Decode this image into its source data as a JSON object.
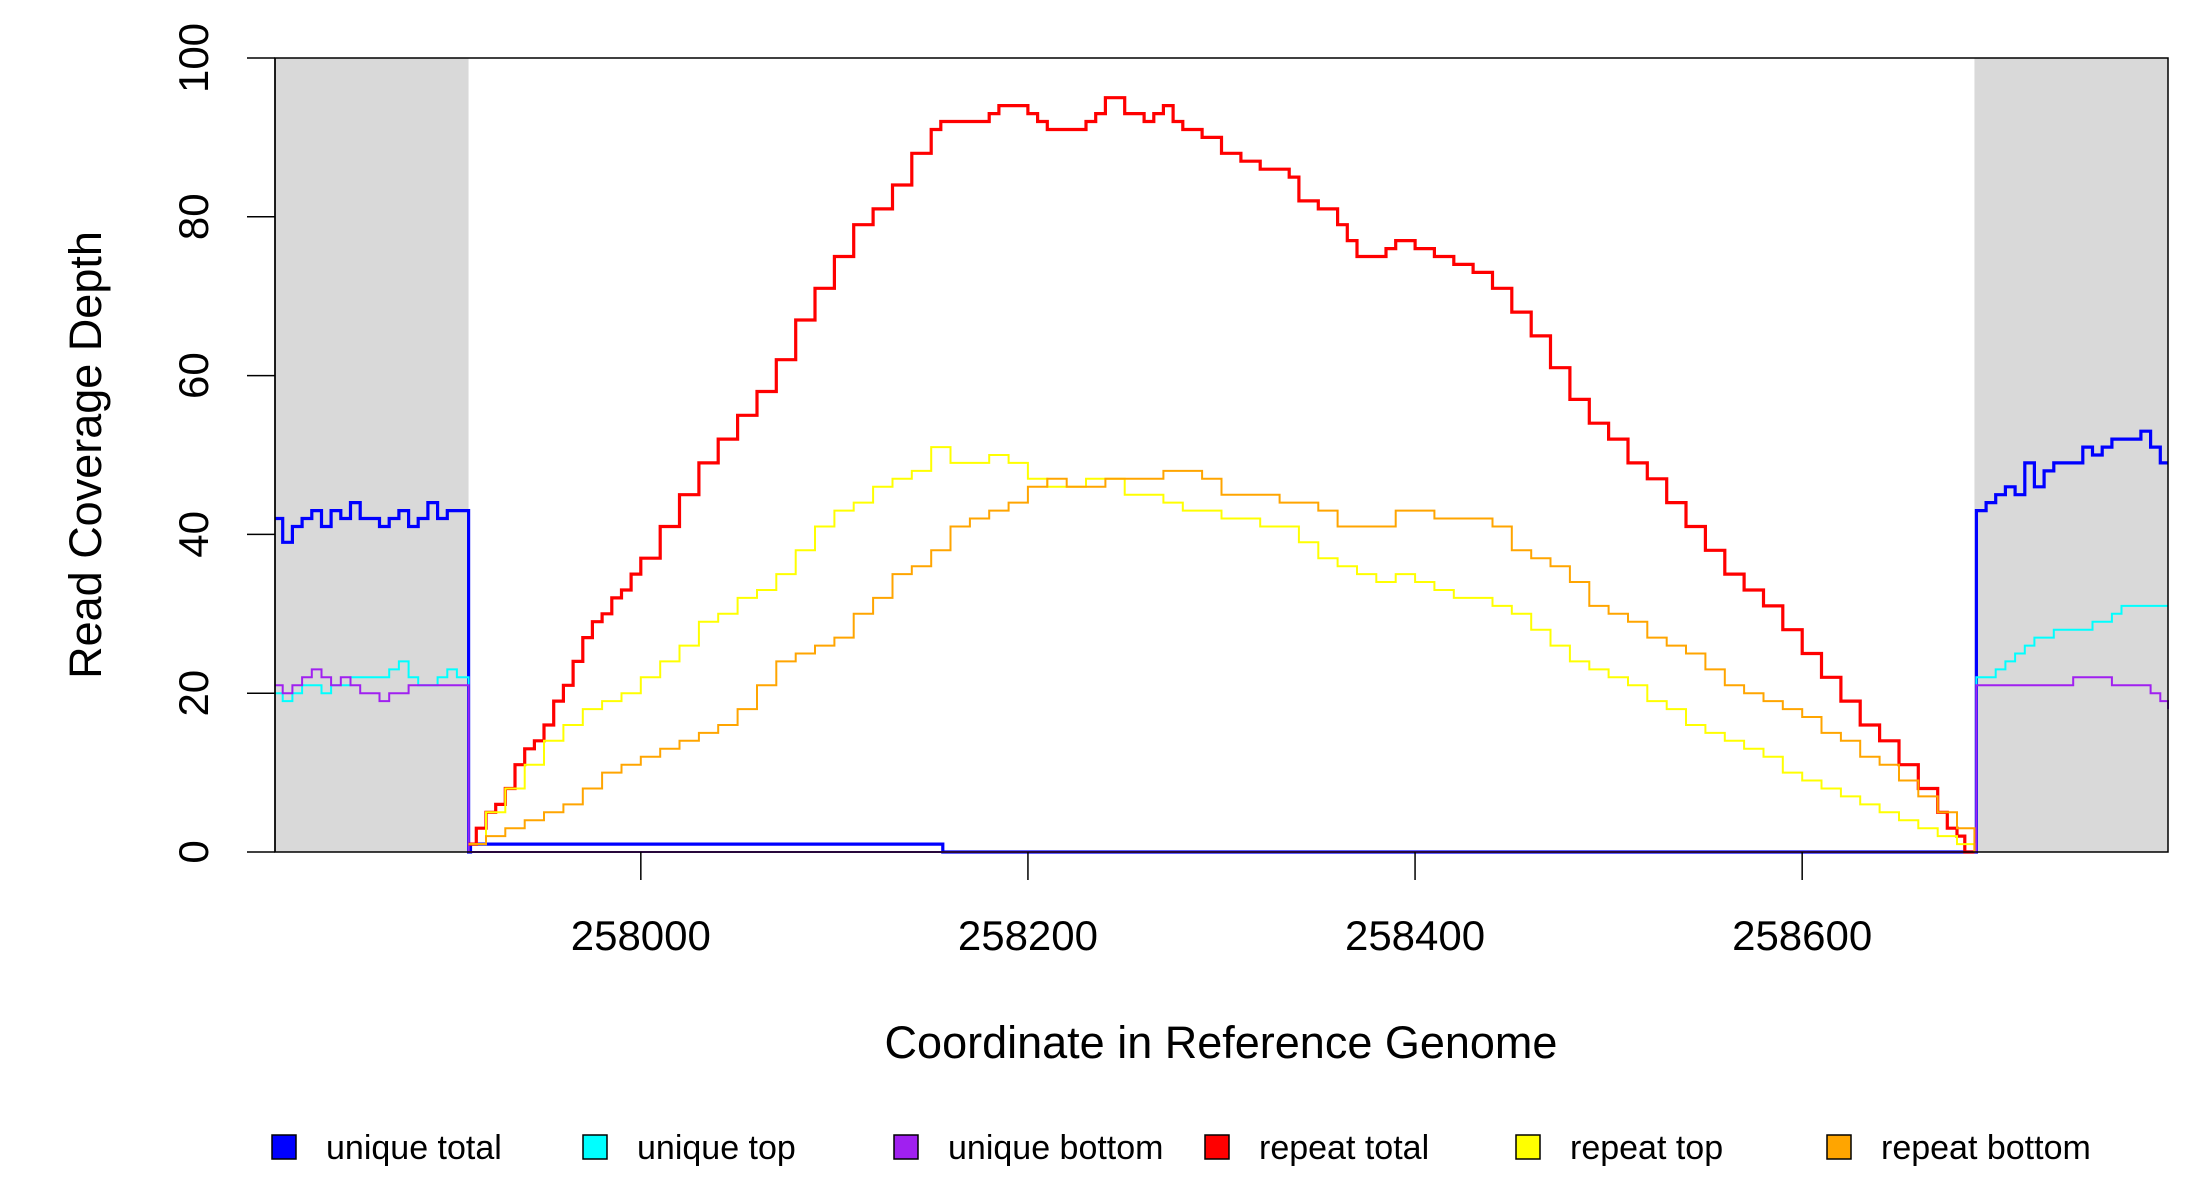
{
  "chart_data": {
    "type": "line",
    "xlabel": "Coordinate in Reference Genome",
    "ylabel": "Read Coverage Depth",
    "xlim": [
      257811,
      258789
    ],
    "ylim": [
      0,
      100
    ],
    "x_ticks": [
      258000,
      258200,
      258400,
      258600
    ],
    "y_ticks": [
      0,
      20,
      40,
      60,
      80,
      100
    ],
    "x_tick_labels": [
      "258000",
      "258200",
      "258400",
      "258600"
    ],
    "y_tick_labels": [
      "0",
      "20",
      "40",
      "60",
      "80",
      "100"
    ],
    "shaded_regions": [
      {
        "from": 257811,
        "to": 257911,
        "color": "#d9d9d9"
      },
      {
        "from": 258689,
        "to": 258789,
        "color": "#d9d9d9"
      }
    ],
    "grid": false,
    "legend_position": "bottom",
    "series": [
      {
        "name": "unique total",
        "color": "#0000ff",
        "x": [
          257811,
          257815,
          257820,
          257825,
          257830,
          257835,
          257840,
          257845,
          257850,
          257855,
          257860,
          257865,
          257870,
          257875,
          257880,
          257885,
          257890,
          257895,
          257900,
          257905,
          257910,
          257911,
          257912,
          258155,
          258156,
          258689,
          258690,
          258695,
          258700,
          258705,
          258710,
          258715,
          258720,
          258725,
          258730,
          258735,
          258740,
          258745,
          258750,
          258755,
          258760,
          258765,
          258770,
          258775,
          258780,
          258785,
          258789
        ],
        "y": [
          42,
          39,
          41,
          42,
          43,
          41,
          43,
          42,
          44,
          42,
          42,
          41,
          42,
          43,
          41,
          42,
          44,
          42,
          43,
          43,
          43,
          0,
          1,
          1,
          0,
          0,
          43,
          44,
          45,
          46,
          45,
          49,
          46,
          48,
          49,
          49,
          49,
          51,
          50,
          51,
          52,
          52,
          52,
          53,
          51,
          49,
          49
        ]
      },
      {
        "name": "unique top",
        "color": "#00ffff",
        "x": [
          257811,
          257815,
          257820,
          257825,
          257830,
          257835,
          257840,
          257845,
          257850,
          257855,
          257860,
          257865,
          257870,
          257875,
          257880,
          257885,
          257890,
          257895,
          257900,
          257905,
          257910,
          257911,
          258689,
          258690,
          258700,
          258705,
          258710,
          258715,
          258720,
          258730,
          258740,
          258750,
          258760,
          258765,
          258770,
          258775,
          258780,
          258785,
          258789
        ],
        "y": [
          20,
          19,
          20,
          21,
          21,
          20,
          21,
          21,
          22,
          22,
          22,
          22,
          23,
          24,
          22,
          21,
          21,
          22,
          23,
          22,
          22,
          0,
          0,
          22,
          23,
          24,
          25,
          26,
          27,
          28,
          28,
          29,
          30,
          31,
          31,
          31,
          31,
          31,
          31
        ]
      },
      {
        "name": "unique bottom",
        "color": "#a020f0",
        "x": [
          257811,
          257815,
          257820,
          257825,
          257830,
          257835,
          257840,
          257845,
          257850,
          257855,
          257860,
          257865,
          257870,
          257875,
          257880,
          257885,
          257890,
          257895,
          257900,
          257905,
          257910,
          257911,
          258689,
          258690,
          258700,
          258710,
          258720,
          258730,
          258740,
          258750,
          258760,
          258765,
          258770,
          258775,
          258780,
          258785,
          258789
        ],
        "y": [
          21,
          20,
          21,
          22,
          23,
          22,
          21,
          22,
          21,
          20,
          20,
          19,
          20,
          20,
          21,
          21,
          21,
          21,
          21,
          21,
          21,
          0,
          0,
          21,
          21,
          21,
          21,
          21,
          22,
          22,
          21,
          21,
          21,
          21,
          20,
          19,
          18
        ]
      },
      {
        "name": "repeat total",
        "color": "#ff0000",
        "x": [
          257911,
          257915,
          257920,
          257925,
          257930,
          257935,
          257940,
          257945,
          257950,
          257955,
          257960,
          257965,
          257970,
          257975,
          257980,
          257985,
          257990,
          257995,
          258000,
          258010,
          258020,
          258030,
          258040,
          258050,
          258060,
          258070,
          258080,
          258090,
          258100,
          258110,
          258120,
          258130,
          258140,
          258150,
          258155,
          258160,
          258170,
          258180,
          258185,
          258190,
          258195,
          258200,
          258205,
          258210,
          258220,
          258230,
          258235,
          258240,
          258250,
          258260,
          258265,
          258270,
          258275,
          258280,
          258290,
          258300,
          258310,
          258320,
          258330,
          258335,
          258340,
          258350,
          258360,
          258365,
          258370,
          258380,
          258385,
          258390,
          258400,
          258410,
          258420,
          258430,
          258440,
          258450,
          258460,
          258470,
          258480,
          258490,
          258500,
          258510,
          258520,
          258530,
          258540,
          258550,
          258560,
          258570,
          258580,
          258590,
          258600,
          258610,
          258620,
          258630,
          258640,
          258650,
          258660,
          258670,
          258675,
          258680,
          258684,
          258689
        ],
        "y": [
          1,
          3,
          5,
          6,
          8,
          11,
          13,
          14,
          16,
          19,
          21,
          24,
          27,
          29,
          30,
          32,
          33,
          35,
          37,
          41,
          45,
          49,
          52,
          55,
          58,
          62,
          67,
          71,
          75,
          79,
          81,
          84,
          88,
          91,
          92,
          92,
          92,
          93,
          94,
          94,
          94,
          93,
          92,
          91,
          91,
          92,
          93,
          95,
          93,
          92,
          93,
          94,
          92,
          91,
          90,
          88,
          87,
          86,
          86,
          85,
          82,
          81,
          79,
          77,
          75,
          75,
          76,
          77,
          76,
          75,
          74,
          73,
          71,
          68,
          65,
          61,
          57,
          54,
          52,
          49,
          47,
          44,
          41,
          38,
          35,
          33,
          31,
          28,
          25,
          22,
          19,
          16,
          14,
          11,
          8,
          5,
          3,
          2,
          0,
          0
        ]
      },
      {
        "name": "repeat top",
        "color": "#ffff00",
        "x": [
          257911,
          257920,
          257930,
          257940,
          257950,
          257960,
          257970,
          257980,
          257990,
          258000,
          258010,
          258020,
          258030,
          258040,
          258050,
          258060,
          258070,
          258080,
          258090,
          258100,
          258110,
          258120,
          258130,
          258140,
          258150,
          258160,
          258170,
          258180,
          258190,
          258200,
          258210,
          258220,
          258230,
          258240,
          258250,
          258260,
          258270,
          258280,
          258290,
          258300,
          258310,
          258320,
          258330,
          258340,
          258350,
          258360,
          258370,
          258380,
          258390,
          258400,
          258410,
          258420,
          258430,
          258440,
          258450,
          258460,
          258470,
          258480,
          258490,
          258500,
          258510,
          258520,
          258530,
          258540,
          258550,
          258560,
          258570,
          258580,
          258590,
          258600,
          258610,
          258620,
          258630,
          258640,
          258650,
          258660,
          258670,
          258680,
          258689
        ],
        "y": [
          1,
          5,
          8,
          11,
          14,
          16,
          18,
          19,
          20,
          22,
          24,
          26,
          29,
          30,
          32,
          33,
          35,
          38,
          41,
          43,
          44,
          46,
          47,
          48,
          51,
          49,
          49,
          50,
          49,
          47,
          46,
          46,
          47,
          47,
          45,
          45,
          44,
          43,
          43,
          42,
          42,
          41,
          41,
          39,
          37,
          36,
          35,
          34,
          35,
          34,
          33,
          32,
          32,
          31,
          30,
          28,
          26,
          24,
          23,
          22,
          21,
          19,
          18,
          16,
          15,
          14,
          13,
          12,
          10,
          9,
          8,
          7,
          6,
          5,
          4,
          3,
          2,
          1,
          0
        ]
      },
      {
        "name": "repeat bottom",
        "color": "#ffa500",
        "x": [
          257911,
          257920,
          257930,
          257940,
          257950,
          257960,
          257970,
          257980,
          257990,
          258000,
          258010,
          258020,
          258030,
          258040,
          258050,
          258060,
          258070,
          258080,
          258090,
          258100,
          258110,
          258120,
          258130,
          258140,
          258150,
          258160,
          258170,
          258180,
          258190,
          258200,
          258210,
          258220,
          258230,
          258240,
          258250,
          258260,
          258270,
          258280,
          258290,
          258300,
          258310,
          258320,
          258330,
          258340,
          258350,
          258360,
          258370,
          258380,
          258390,
          258400,
          258410,
          258420,
          258430,
          258440,
          258450,
          258460,
          258470,
          258480,
          258490,
          258500,
          258510,
          258520,
          258530,
          258540,
          258550,
          258560,
          258570,
          258580,
          258590,
          258600,
          258610,
          258620,
          258630,
          258640,
          258650,
          258660,
          258670,
          258680,
          258689
        ],
        "y": [
          1,
          2,
          3,
          4,
          5,
          6,
          8,
          10,
          11,
          12,
          13,
          14,
          15,
          16,
          18,
          21,
          24,
          25,
          26,
          27,
          30,
          32,
          35,
          36,
          38,
          41,
          42,
          43,
          44,
          46,
          47,
          46,
          46,
          47,
          47,
          47,
          48,
          48,
          47,
          45,
          45,
          45,
          44,
          44,
          43,
          41,
          41,
          41,
          43,
          43,
          42,
          42,
          42,
          41,
          38,
          37,
          36,
          34,
          31,
          30,
          29,
          27,
          26,
          25,
          23,
          21,
          20,
          19,
          18,
          17,
          15,
          14,
          12,
          11,
          9,
          7,
          5,
          3,
          0
        ]
      }
    ]
  },
  "legend": {
    "items": [
      {
        "label": "unique total",
        "color": "#0000ff"
      },
      {
        "label": "unique top",
        "color": "#00ffff"
      },
      {
        "label": "unique bottom",
        "color": "#a020f0"
      },
      {
        "label": "repeat total",
        "color": "#ff0000"
      },
      {
        "label": "repeat top",
        "color": "#ffff00"
      },
      {
        "label": "repeat bottom",
        "color": "#ffa500"
      }
    ]
  }
}
